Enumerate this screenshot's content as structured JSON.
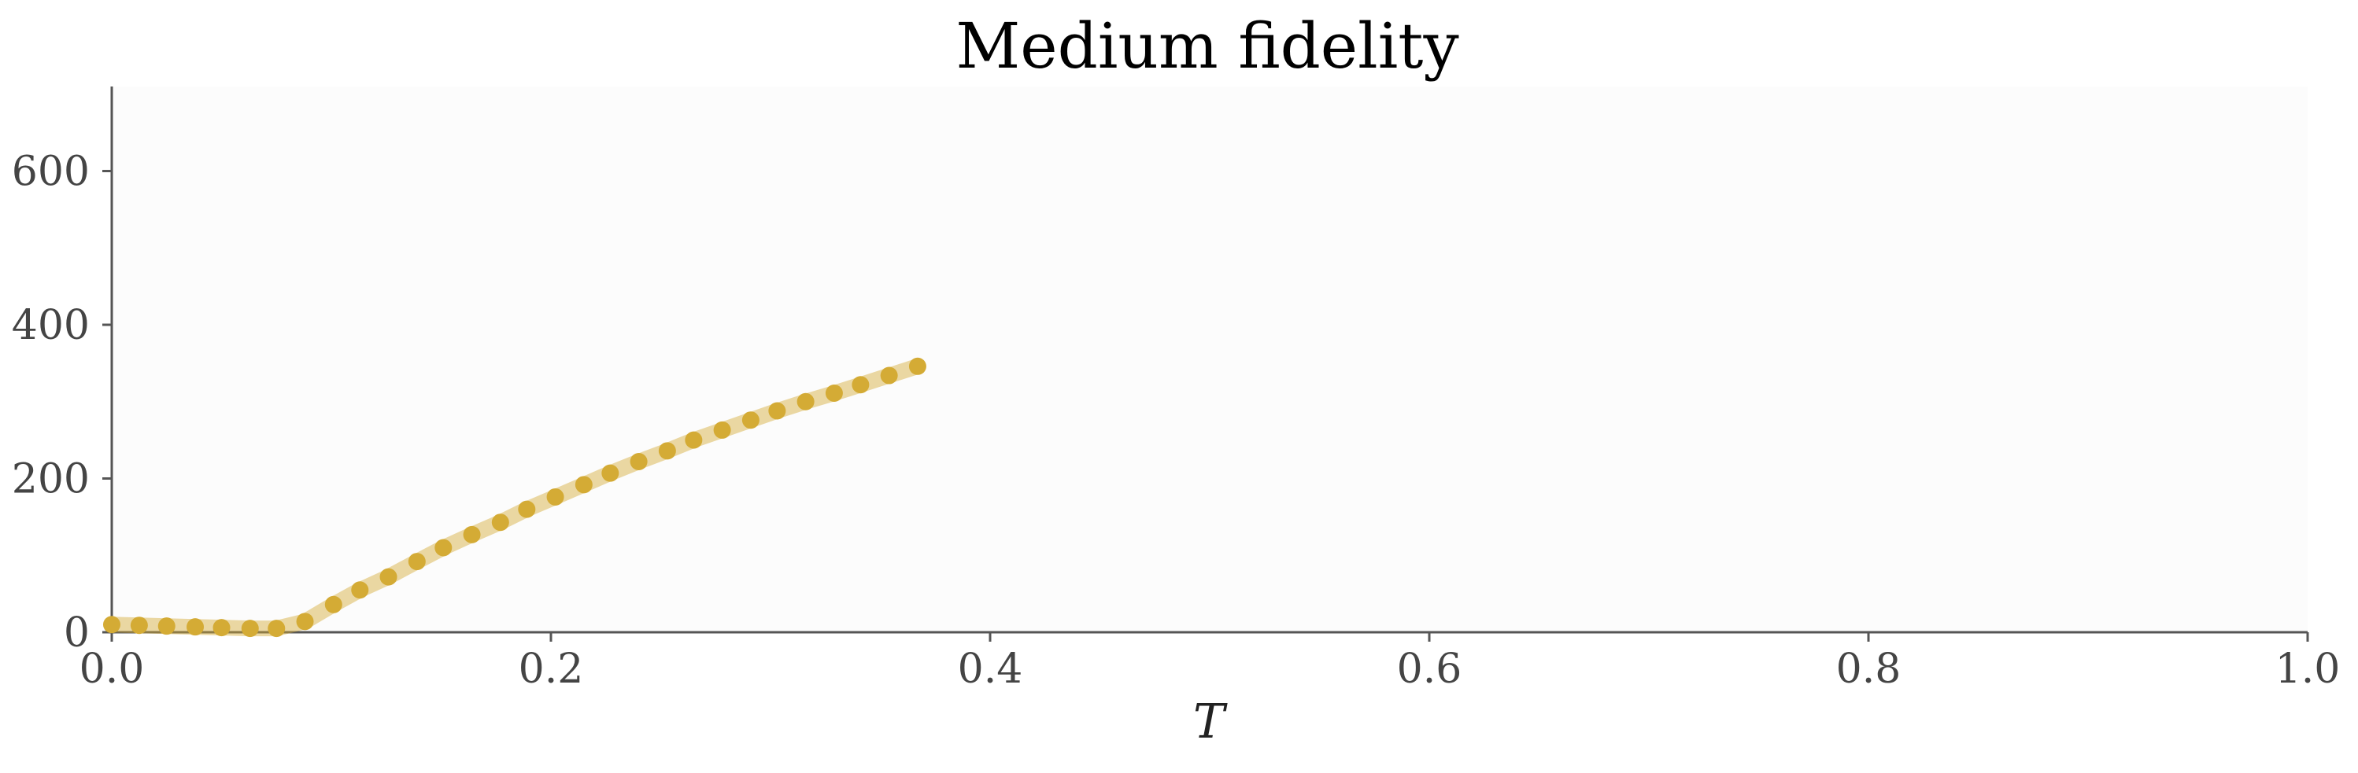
{
  "chart_data": {
    "type": "line",
    "title": "Medium fidelity",
    "xlabel": "T",
    "ylabel": "",
    "xlim": [
      0.0,
      1.0
    ],
    "ylim": [
      0,
      710
    ],
    "x_ticks": [
      0.0,
      0.2,
      0.4,
      0.6,
      0.8,
      1.0
    ],
    "x_tick_labels": [
      "0.0",
      "0.2",
      "0.4",
      "0.6",
      "0.8",
      "1.0"
    ],
    "y_ticks": [
      0,
      200,
      400,
      600
    ],
    "y_tick_labels": [
      "0",
      "200",
      "400",
      "600"
    ],
    "grid": false,
    "legend": "none",
    "series": [
      {
        "color": "#d4ab35",
        "x": [
          0.0,
          0.0125,
          0.025,
          0.038,
          0.05,
          0.063,
          0.075,
          0.088,
          0.101,
          0.113,
          0.126,
          0.139,
          0.151,
          0.164,
          0.177,
          0.189,
          0.202,
          0.215,
          0.227,
          0.24,
          0.253,
          0.265,
          0.278,
          0.291,
          0.303,
          0.316,
          0.329,
          0.341,
          0.354,
          0.367
        ],
        "y": [
          10,
          9,
          8,
          7,
          6,
          5,
          5,
          14,
          36,
          55,
          72,
          92,
          110,
          127,
          143,
          160,
          176,
          192,
          207,
          222,
          236,
          250,
          263,
          276,
          288,
          300,
          311,
          322,
          334,
          346
        ]
      }
    ]
  }
}
